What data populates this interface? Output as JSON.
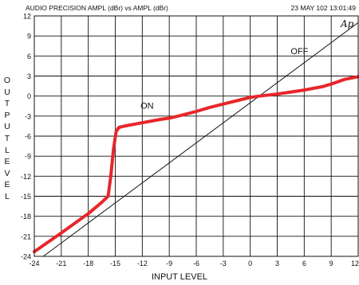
{
  "header": {
    "left": "AUDIO PRECISION AMPL (dBr) vs AMPL (dBr)",
    "right": "23 MAY 102 13:01:49",
    "logo": "Ap"
  },
  "chart_data": {
    "type": "line",
    "xlabel": "INPUT LEVEL",
    "ylabel": "OUTPUT LEVEL",
    "xlim": [
      -24,
      12
    ],
    "ylim": [
      -24,
      12
    ],
    "xticks": [
      -24,
      -21,
      -18,
      -15,
      -12,
      -9,
      -6,
      -3,
      0,
      3,
      6,
      9,
      12
    ],
    "yticks": [
      12,
      9,
      6,
      3,
      0,
      -3,
      -6,
      -9,
      -12,
      -15,
      -18,
      -21,
      -24
    ],
    "grid": true,
    "series": [
      {
        "name": "OFF",
        "color": "#111111",
        "x": [
          -23,
          12
        ],
        "y": [
          -24,
          11
        ]
      },
      {
        "name": "ON",
        "color": "#e8262b",
        "x": [
          -24,
          -21,
          -18,
          -16.5,
          -15.8,
          -15.5,
          -15.2,
          -14.9,
          -14.6,
          -14,
          -12,
          -10,
          -9,
          -8,
          -6,
          -4.5,
          -3,
          -1.5,
          0,
          1,
          3,
          6,
          8,
          9,
          10.5,
          12
        ],
        "y": [
          -23.3,
          -20.5,
          -17.6,
          -15.9,
          -15,
          -12,
          -8,
          -5.3,
          -4.7,
          -4.5,
          -4,
          -3.5,
          -3.3,
          -3,
          -2.3,
          -1.7,
          -1.2,
          -0.7,
          -0.2,
          0,
          0.3,
          0.9,
          1.4,
          1.8,
          2.5,
          2.9
        ]
      }
    ],
    "annotations": [
      {
        "text": "ON",
        "x": -12.2,
        "y": -1.9
      },
      {
        "text": "OFF",
        "x": 4.5,
        "y": 6.3
      }
    ]
  }
}
